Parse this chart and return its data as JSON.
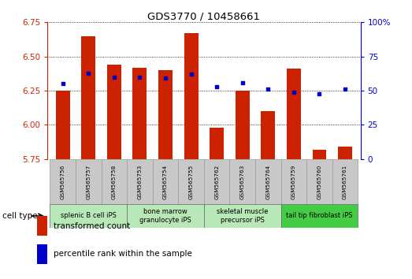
{
  "title": "GDS3770 / 10458661",
  "samples": [
    "GSM565756",
    "GSM565757",
    "GSM565758",
    "GSM565753",
    "GSM565754",
    "GSM565755",
    "GSM565762",
    "GSM565763",
    "GSM565764",
    "GSM565759",
    "GSM565760",
    "GSM565761"
  ],
  "transformed_count": [
    6.25,
    6.65,
    6.44,
    6.42,
    6.4,
    6.67,
    5.98,
    6.25,
    6.1,
    6.41,
    5.82,
    5.84
  ],
  "percentile_rank": [
    55,
    63,
    60,
    60,
    59,
    62,
    53,
    56,
    51,
    49,
    48,
    51
  ],
  "ylim_left": [
    5.75,
    6.75
  ],
  "ylim_right": [
    0,
    100
  ],
  "yticks_left": [
    5.75,
    6.0,
    6.25,
    6.5,
    6.75
  ],
  "yticks_right": [
    0,
    25,
    50,
    75,
    100
  ],
  "ytick_labels_right": [
    "0",
    "25",
    "50",
    "75",
    "100%"
  ],
  "bar_color": "#cc2200",
  "dot_color": "#0000cc",
  "bar_bottom": 5.75,
  "axis_left_color": "#cc2200",
  "axis_right_color": "#0000cc",
  "xlabel_cell_type": "cell type",
  "legend_bar_label": "transformed count",
  "legend_dot_label": "percentile rank within the sample",
  "group_extents": [
    [
      0,
      2,
      "splenic B cell iPS",
      "#b8e8b8"
    ],
    [
      3,
      5,
      "bone marrow\ngranulocyte iPS",
      "#b8e8b8"
    ],
    [
      6,
      8,
      "skeletal muscle\nprecursor iPS",
      "#b8e8b8"
    ],
    [
      9,
      11,
      "tail tip fibroblast iPS",
      "#44cc44"
    ]
  ],
  "sample_bg": "#c8c8c8"
}
